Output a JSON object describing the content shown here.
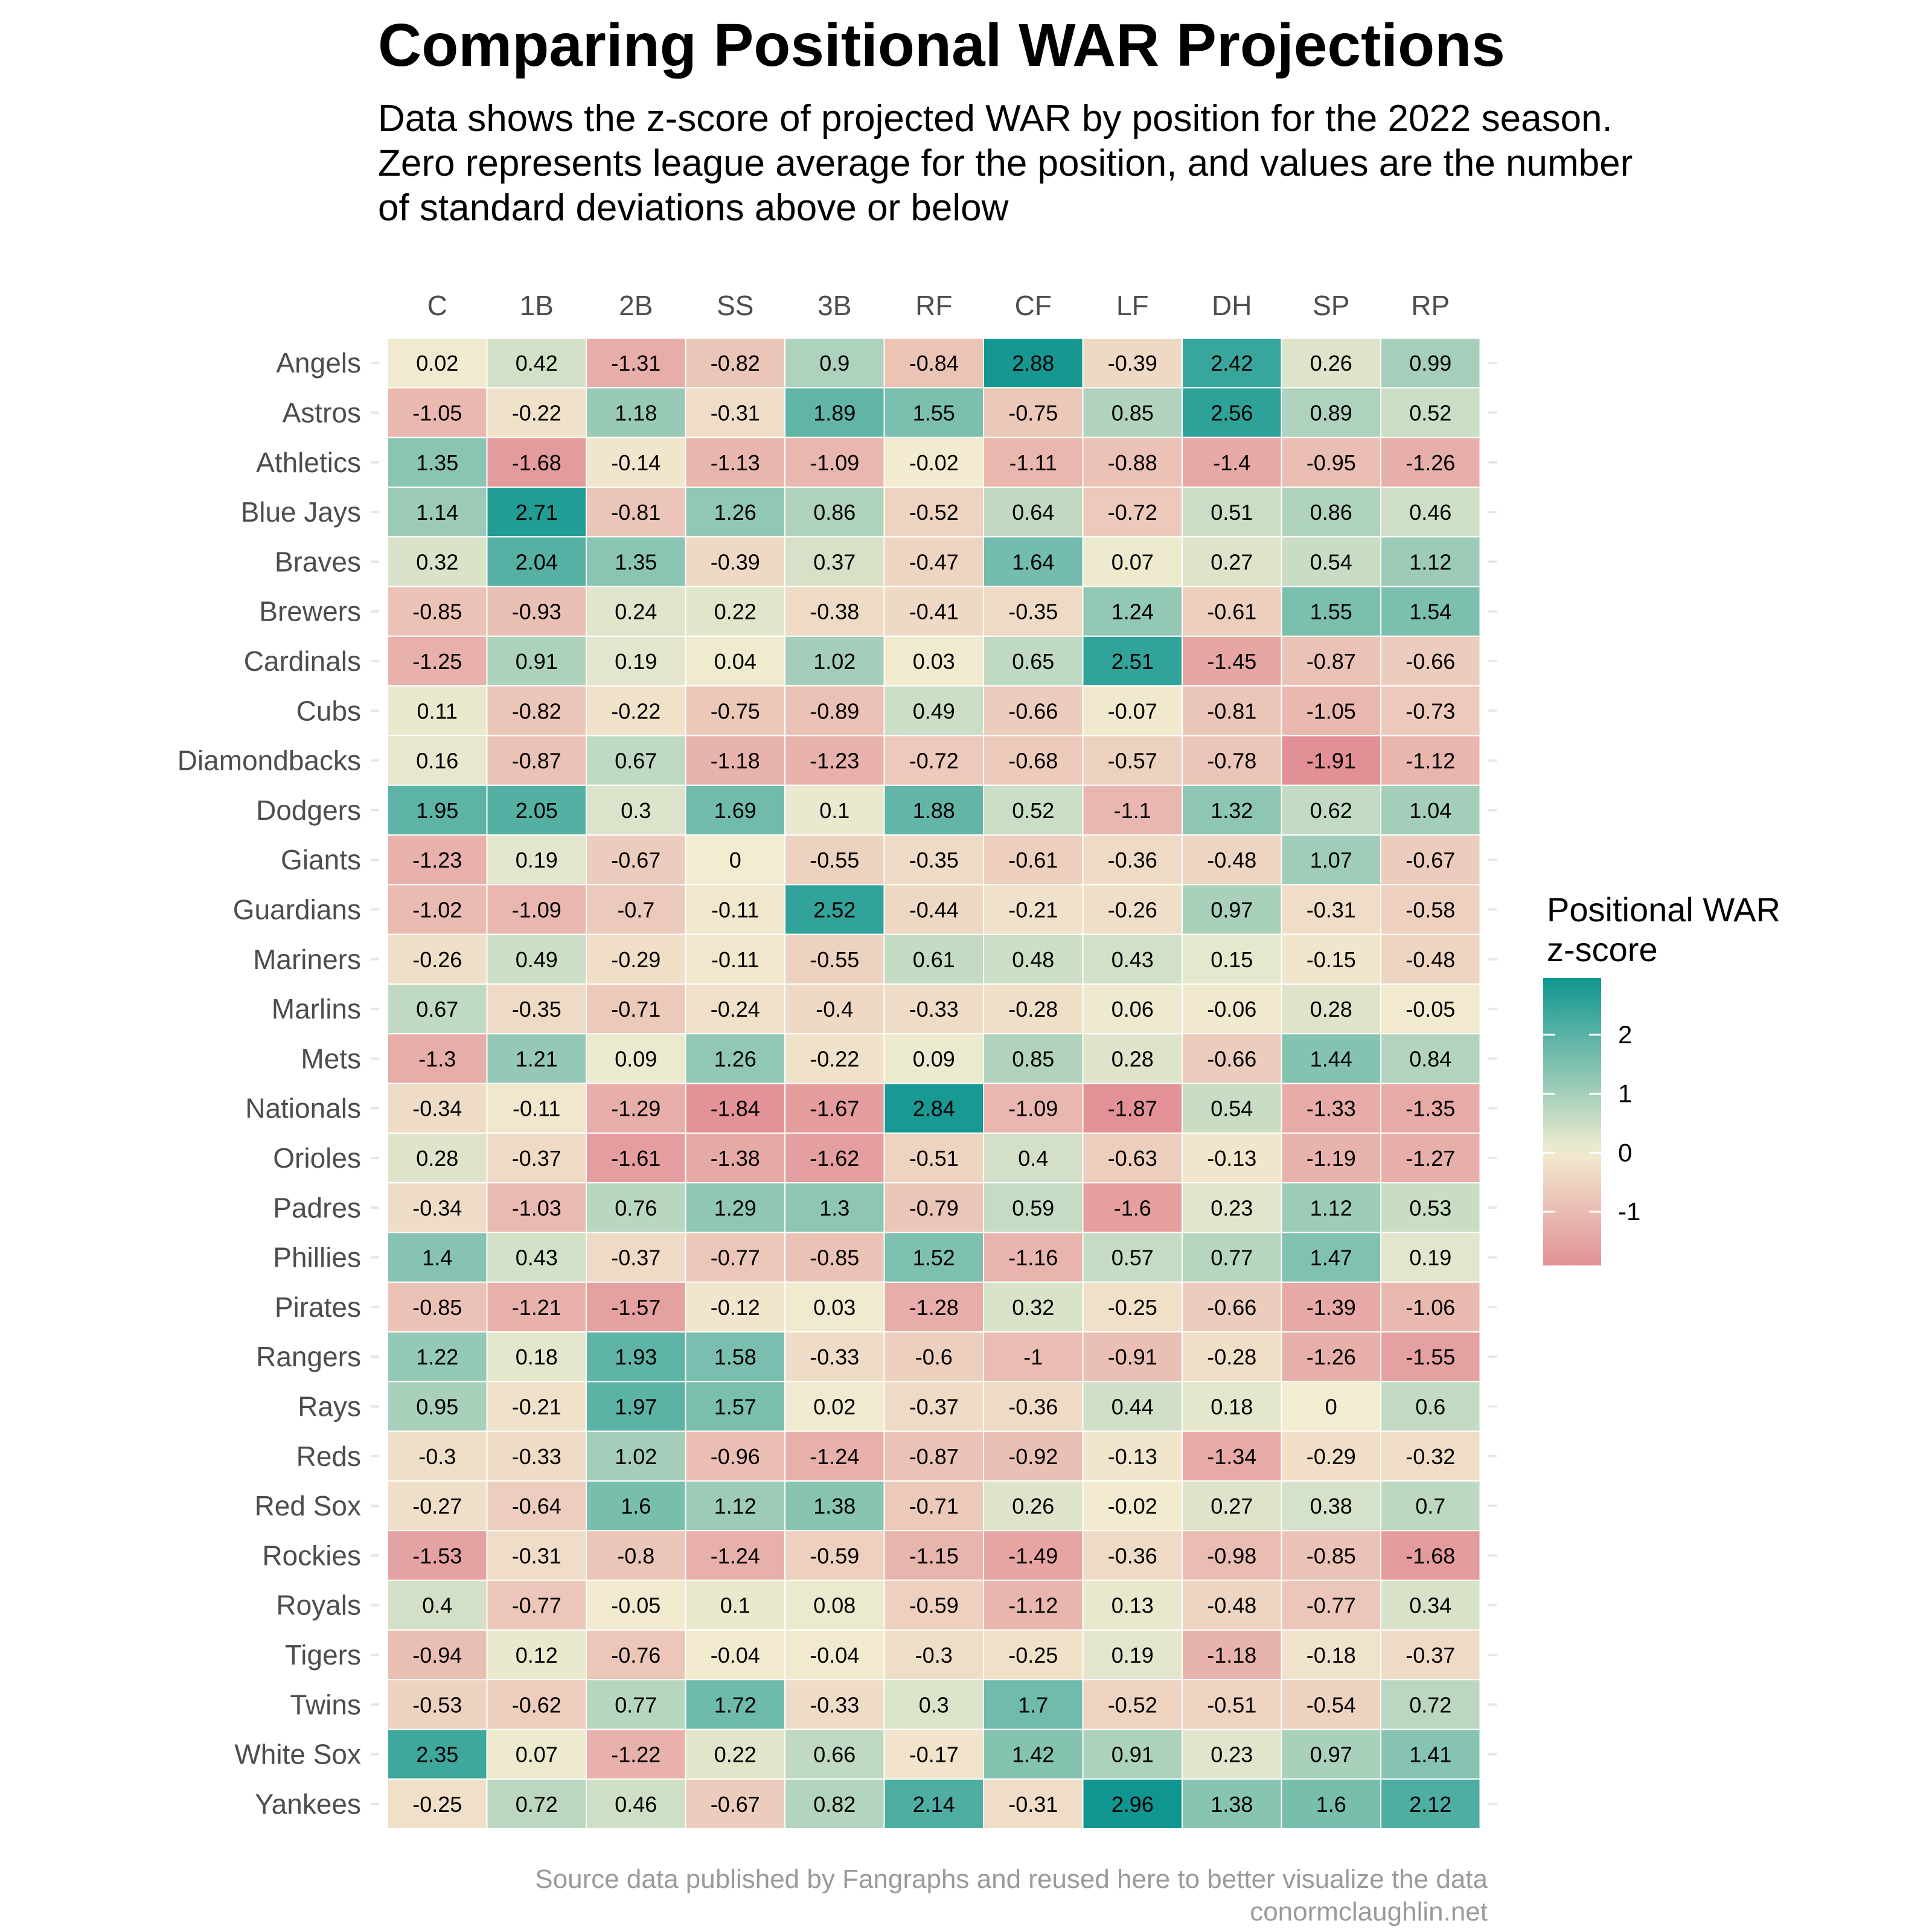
{
  "title": "Comparing Positional WAR Projections",
  "subtitle_lines": [
    "Data shows the z-score of projected WAR by position for the 2022 season.",
    "Zero represents league average for the position, and values are the number",
    "of standard deviations above or below"
  ],
  "caption_lines": [
    "Source data published by Fangraphs and reused here to better visualize the data",
    "conormclaughlin.net"
  ],
  "colors": {
    "high": "#0f9690",
    "mid": "#f2ecd0",
    "low": "#e29096",
    "text": "#000000",
    "axis_text": "#4d4d4d",
    "caption": "#9a9a9a"
  },
  "chart_data": {
    "type": "heatmap",
    "title": "Comparing Positional WAR Projections",
    "legend_title_lines": [
      "Positional WAR",
      "z-score"
    ],
    "legend_ticks": [
      2,
      1,
      0,
      -1
    ],
    "legend_range": [
      -1.91,
      2.96
    ],
    "x_categories": [
      "C",
      "1B",
      "2B",
      "SS",
      "3B",
      "RF",
      "CF",
      "LF",
      "DH",
      "SP",
      "RP"
    ],
    "y_categories": [
      "Angels",
      "Astros",
      "Athletics",
      "Blue Jays",
      "Braves",
      "Brewers",
      "Cardinals",
      "Cubs",
      "Diamondbacks",
      "Dodgers",
      "Giants",
      "Guardians",
      "Mariners",
      "Marlins",
      "Mets",
      "Nationals",
      "Orioles",
      "Padres",
      "Phillies",
      "Pirates",
      "Rangers",
      "Rays",
      "Reds",
      "Red Sox",
      "Rockies",
      "Royals",
      "Tigers",
      "Twins",
      "White Sox",
      "Yankees"
    ],
    "values": [
      [
        0.02,
        0.42,
        -1.31,
        -0.82,
        0.9,
        -0.84,
        2.88,
        -0.39,
        2.42,
        0.26,
        0.99
      ],
      [
        -1.05,
        -0.22,
        1.18,
        -0.31,
        1.89,
        1.55,
        -0.75,
        0.85,
        2.56,
        0.89,
        0.52
      ],
      [
        1.35,
        -1.68,
        -0.14,
        -1.13,
        -1.09,
        -0.02,
        -1.11,
        -0.88,
        -1.4,
        -0.95,
        -1.26
      ],
      [
        1.14,
        2.71,
        -0.81,
        1.26,
        0.86,
        -0.52,
        0.64,
        -0.72,
        0.51,
        0.86,
        0.46
      ],
      [
        0.32,
        2.04,
        1.35,
        -0.39,
        0.37,
        -0.47,
        1.64,
        0.07,
        0.27,
        0.54,
        1.12
      ],
      [
        -0.85,
        -0.93,
        0.24,
        0.22,
        -0.38,
        -0.41,
        -0.35,
        1.24,
        -0.61,
        1.55,
        1.54
      ],
      [
        -1.25,
        0.91,
        0.19,
        0.04,
        1.02,
        0.03,
        0.65,
        2.51,
        -1.45,
        -0.87,
        -0.66
      ],
      [
        0.11,
        -0.82,
        -0.22,
        -0.75,
        -0.89,
        0.49,
        -0.66,
        -0.07,
        -0.81,
        -1.05,
        -0.73
      ],
      [
        0.16,
        -0.87,
        0.67,
        -1.18,
        -1.23,
        -0.72,
        -0.68,
        -0.57,
        -0.78,
        -1.91,
        -1.12
      ],
      [
        1.95,
        2.05,
        0.3,
        1.69,
        0.1,
        1.88,
        0.52,
        -1.1,
        1.32,
        0.62,
        1.04
      ],
      [
        -1.23,
        0.19,
        -0.67,
        0,
        -0.55,
        -0.35,
        -0.61,
        -0.36,
        -0.48,
        1.07,
        -0.67
      ],
      [
        -1.02,
        -1.09,
        -0.7,
        -0.11,
        2.52,
        -0.44,
        -0.21,
        -0.26,
        0.97,
        -0.31,
        -0.58
      ],
      [
        -0.26,
        0.49,
        -0.29,
        -0.11,
        -0.55,
        0.61,
        0.48,
        0.43,
        0.15,
        -0.15,
        -0.48
      ],
      [
        0.67,
        -0.35,
        -0.71,
        -0.24,
        -0.4,
        -0.33,
        -0.28,
        0.06,
        -0.06,
        0.28,
        -0.05
      ],
      [
        -1.3,
        1.21,
        0.09,
        1.26,
        -0.22,
        0.09,
        0.85,
        0.28,
        -0.66,
        1.44,
        0.84
      ],
      [
        -0.34,
        -0.11,
        -1.29,
        -1.84,
        -1.67,
        2.84,
        -1.09,
        -1.87,
        0.54,
        -1.33,
        -1.35
      ],
      [
        0.28,
        -0.37,
        -1.61,
        -1.38,
        -1.62,
        -0.51,
        0.4,
        -0.63,
        -0.13,
        -1.19,
        -1.27
      ],
      [
        -0.34,
        -1.03,
        0.76,
        1.29,
        1.3,
        -0.79,
        0.59,
        -1.6,
        0.23,
        1.12,
        0.53
      ],
      [
        1.4,
        0.43,
        -0.37,
        -0.77,
        -0.85,
        1.52,
        -1.16,
        0.57,
        0.77,
        1.47,
        0.19
      ],
      [
        -0.85,
        -1.21,
        -1.57,
        -0.12,
        0.03,
        -1.28,
        0.32,
        -0.25,
        -0.66,
        -1.39,
        -1.06
      ],
      [
        1.22,
        0.18,
        1.93,
        1.58,
        -0.33,
        -0.6,
        -1,
        -0.91,
        -0.28,
        -1.26,
        -1.55
      ],
      [
        0.95,
        -0.21,
        1.97,
        1.57,
        0.02,
        -0.37,
        -0.36,
        0.44,
        0.18,
        0,
        0.6
      ],
      [
        -0.3,
        -0.33,
        1.02,
        -0.96,
        -1.24,
        -0.87,
        -0.92,
        -0.13,
        -1.34,
        -0.29,
        -0.32
      ],
      [
        -0.27,
        -0.64,
        1.6,
        1.12,
        1.38,
        -0.71,
        0.26,
        -0.02,
        0.27,
        0.38,
        0.7
      ],
      [
        -1.53,
        -0.31,
        -0.8,
        -1.24,
        -0.59,
        -1.15,
        -1.49,
        -0.36,
        -0.98,
        -0.85,
        -1.68
      ],
      [
        0.4,
        -0.77,
        -0.05,
        0.1,
        0.08,
        -0.59,
        -1.12,
        0.13,
        -0.48,
        -0.77,
        0.34
      ],
      [
        -0.94,
        0.12,
        -0.76,
        -0.04,
        -0.04,
        -0.3,
        -0.25,
        0.19,
        -1.18,
        -0.18,
        -0.37
      ],
      [
        -0.53,
        -0.62,
        0.77,
        1.72,
        -0.33,
        0.3,
        1.7,
        -0.52,
        -0.51,
        -0.54,
        0.72
      ],
      [
        2.35,
        0.07,
        -1.22,
        0.22,
        0.66,
        -0.17,
        1.42,
        0.91,
        0.23,
        0.97,
        1.41
      ],
      [
        -0.25,
        0.72,
        0.46,
        -0.67,
        0.82,
        2.14,
        -0.31,
        2.96,
        1.38,
        1.6,
        2.12
      ]
    ]
  }
}
